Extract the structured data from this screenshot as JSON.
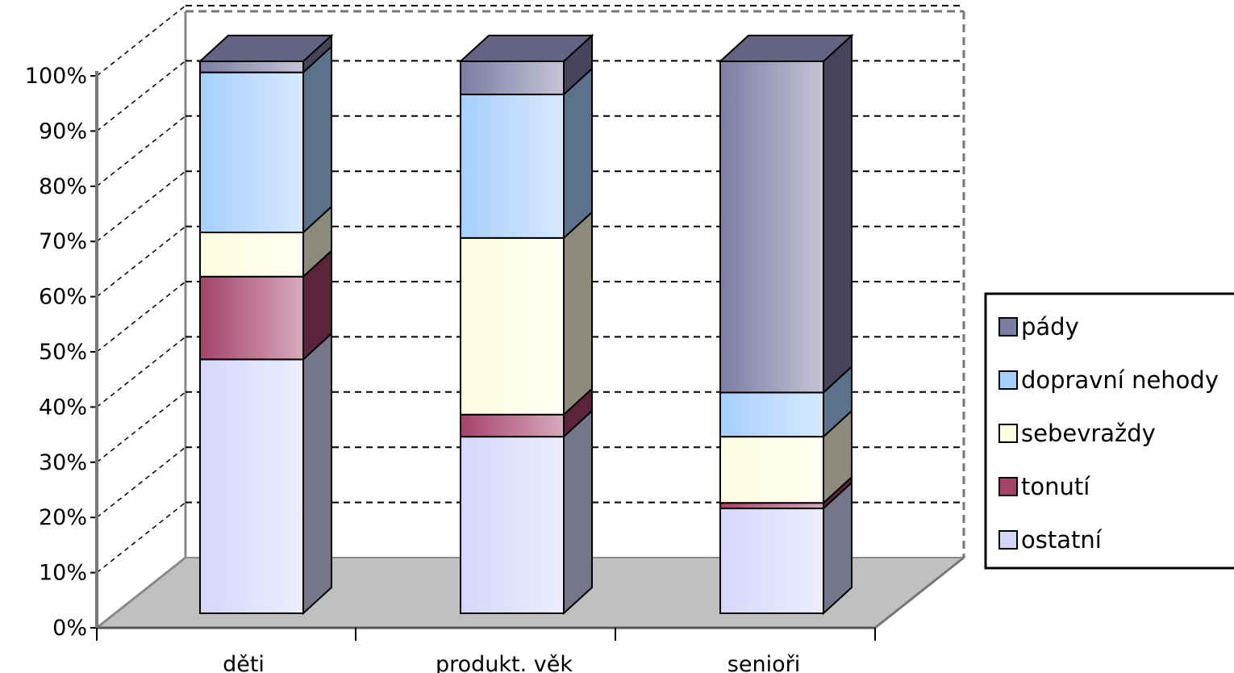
{
  "chart_data": {
    "type": "bar",
    "stacked": true,
    "percent_stacked": true,
    "three_d": true,
    "categories": [
      "děti",
      "produkt. věk",
      "senioři"
    ],
    "series": [
      {
        "name": "ostatní",
        "values": [
          46,
          32,
          19
        ],
        "color": "#d6d6fb"
      },
      {
        "name": "tonutí",
        "values": [
          15,
          4,
          1
        ],
        "color": "#a5426a"
      },
      {
        "name": "sebevraždy",
        "values": [
          8,
          32,
          12
        ],
        "color": "#fffde0"
      },
      {
        "name": "dopravní nehody",
        "values": [
          29,
          26,
          8
        ],
        "color": "#a6ceff"
      },
      {
        "name": "pády",
        "values": [
          2,
          6,
          60
        ],
        "color": "#7d7ca3"
      }
    ],
    "yticks": [
      "0%",
      "10%",
      "20%",
      "30%",
      "40%",
      "50%",
      "60%",
      "70%",
      "80%",
      "90%",
      "100%"
    ],
    "ylim": [
      0,
      100
    ],
    "grid": true,
    "legend_position": "right"
  }
}
